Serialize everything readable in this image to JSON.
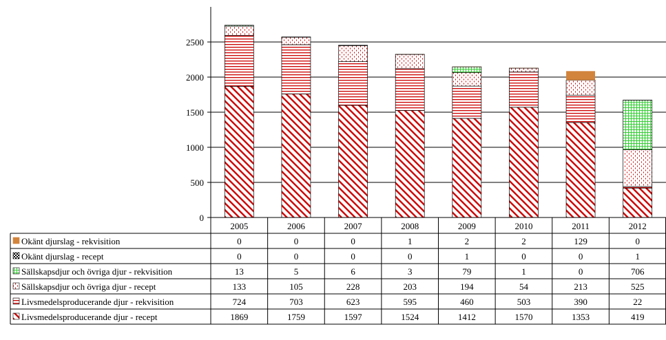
{
  "chart_data": {
    "type": "bar",
    "stacked": true,
    "categories": [
      "2005",
      "2006",
      "2007",
      "2008",
      "2009",
      "2010",
      "2011",
      "2012"
    ],
    "ylim": [
      0,
      3000
    ],
    "yticks": [
      0,
      500,
      1000,
      1500,
      2000,
      2500
    ],
    "grid": "horizontal",
    "legend_placement": "data-table-below",
    "series": [
      {
        "name": "Livsmedelsproducerande djur - recept",
        "values": [
          1869,
          1759,
          1597,
          1524,
          1412,
          1570,
          1353,
          419
        ],
        "color": "#cc0000",
        "pattern": "diagonal"
      },
      {
        "name": "Livsmedelsproducerande djur - rekvisition",
        "values": [
          724,
          703,
          623,
          595,
          460,
          503,
          390,
          22
        ],
        "color": "#cc0000",
        "pattern": "horizontal"
      },
      {
        "name": "Sällskapsdjur och övriga djur - recept",
        "values": [
          133,
          105,
          228,
          203,
          194,
          54,
          213,
          525
        ],
        "color": "#cc0000",
        "pattern": "dots"
      },
      {
        "name": "Sällskapsdjur och övriga djur - rekvisition",
        "values": [
          13,
          5,
          6,
          3,
          79,
          1,
          0,
          706
        ],
        "color": "#33cc33",
        "pattern": "grid"
      },
      {
        "name": "Okänt djurslag - recept",
        "values": [
          0,
          0,
          0,
          0,
          1,
          0,
          0,
          1
        ],
        "color": "#000000",
        "pattern": "check"
      },
      {
        "name": "Okänt djurslag - rekvisition",
        "values": [
          0,
          0,
          0,
          1,
          2,
          2,
          129,
          0
        ],
        "color": "#d2843c",
        "pattern": "solid"
      }
    ]
  }
}
